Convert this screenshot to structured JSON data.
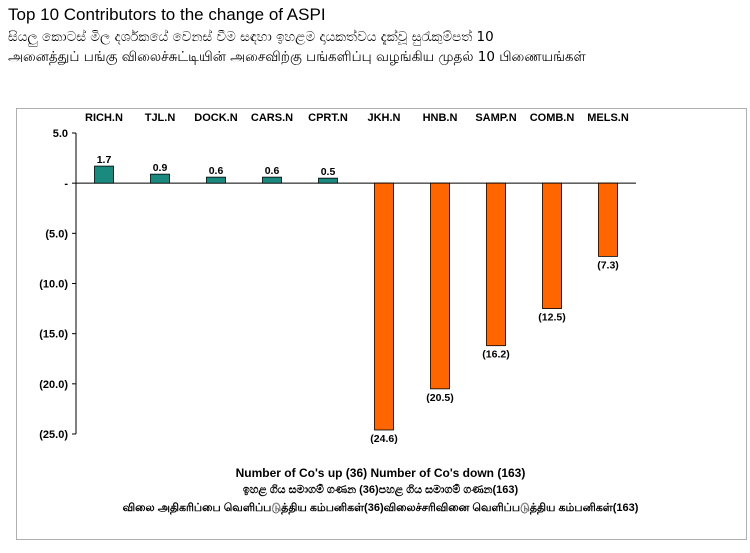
{
  "header": {
    "title_en": "Top 10 Contributors to the change of ASPI",
    "title_si": "සියලු කොටස් මිල දර්ශකයේ වෙනස් වීම සඳහා ඉහළම දායකත්වය දැක්වූ සුරැකුම්පත් 10",
    "title_ta": "அனைத்துப் பங்கு விலைச்சுட்டியின் அசைவிற்கு பங்களிப்பு வழங்கிய முதல் 10 பிணையங்கள்"
  },
  "chart_data": {
    "type": "bar",
    "categories": [
      "RICH.N",
      "TJL.N",
      "DOCK.N",
      "CARS.N",
      "CPRT.N",
      "JKH.N",
      "HNB.N",
      "SAMP.N",
      "COMB.N",
      "MELS.N"
    ],
    "values": [
      1.7,
      0.9,
      0.6,
      0.6,
      0.5,
      -24.6,
      -20.5,
      -16.2,
      -12.5,
      -7.3
    ],
    "value_labels": [
      "1.7",
      "0.9",
      "0.6",
      "0.6",
      "0.5",
      "(24.6)",
      "(20.5)",
      "(16.2)",
      "(12.5)",
      "(7.3)"
    ],
    "ylim": [
      -25,
      5
    ],
    "yticks": [
      5,
      0,
      -5,
      -10,
      -15,
      -20,
      -25
    ],
    "ytick_labels": [
      "5.0",
      "-",
      "(5.0)",
      "(10.0)",
      "(15.0)",
      "(20.0)",
      "(25.0)"
    ],
    "colors": {
      "positive": "#1a8a7f",
      "negative": "#ff6600"
    },
    "grid": false,
    "category_axis_position": "top",
    "footer": {
      "line_en": "Number of Co's up (36) Number of Co's down  (163)",
      "line_si": "ඉහළ ගිය සමාගම් ගණන (36)පහළ ගිය සමාගම් ගණන(163)",
      "line_ta": "விலை அதிகரிப்பை வெளிப்படுத்திய கம்பனிகள்(36)விலைச்சரிவினை வெளிப்படுத்திய கம்பனிகள்(163)"
    }
  }
}
